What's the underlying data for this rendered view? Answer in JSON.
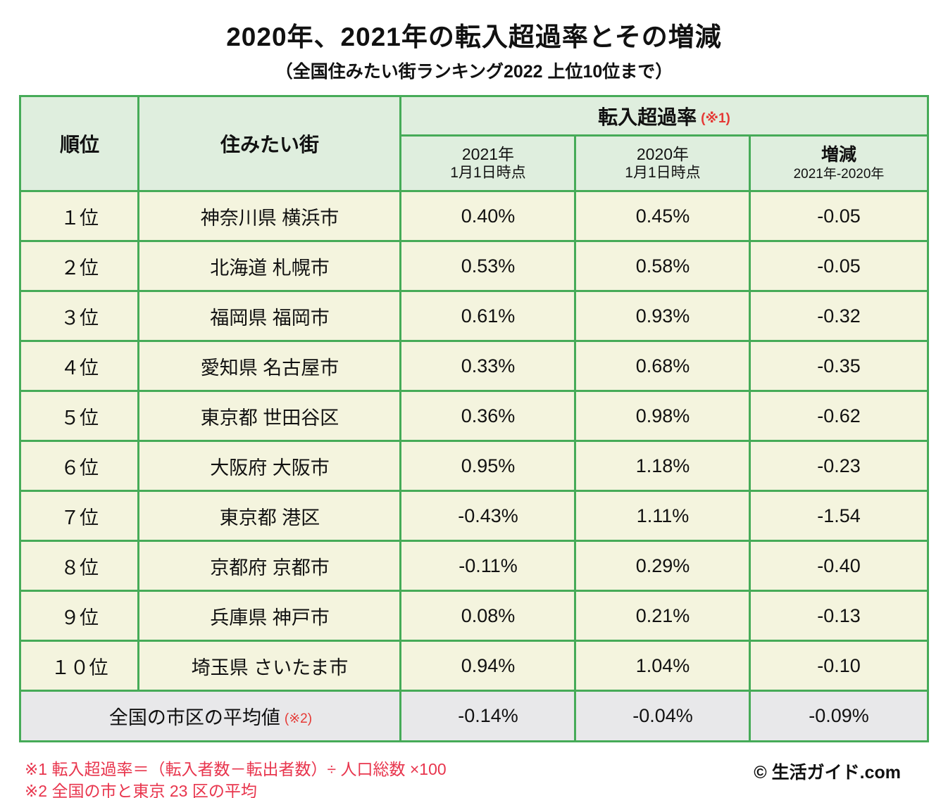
{
  "title": "2020年、2021年の転入超過率とその増減",
  "subtitle": "（全国住みたい街ランキング2022 上位10位まで）",
  "header": {
    "rank": "順位",
    "city": "住みたい街",
    "rate_group": "転入超過率",
    "rate_group_note": "(※1)",
    "y2021": {
      "line1": "2021年",
      "line2": "1月1日時点"
    },
    "y2020": {
      "line1": "2020年",
      "line2": "1月1日時点"
    },
    "diff": {
      "line1": "増減",
      "line2": "2021年-2020年"
    }
  },
  "chart_data": {
    "type": "table",
    "title": "2020年、2021年の転入超過率とその増減",
    "subtitle": "（全国住みたい街ランキング2022 上位10位まで）",
    "columns": [
      "順位",
      "住みたい街",
      "転入超過率 2021年1月1日時点",
      "転入超過率 2020年1月1日時点",
      "増減 2021年-2020年"
    ],
    "rows": [
      {
        "rank": "１位",
        "city": "神奈川県 横浜市",
        "rate_2021": "0.40%",
        "rate_2020": "0.45%",
        "diff": "-0.05"
      },
      {
        "rank": "２位",
        "city": "北海道 札幌市",
        "rate_2021": "0.53%",
        "rate_2020": "0.58%",
        "diff": "-0.05"
      },
      {
        "rank": "３位",
        "city": "福岡県 福岡市",
        "rate_2021": "0.61%",
        "rate_2020": "0.93%",
        "diff": "-0.32"
      },
      {
        "rank": "４位",
        "city": "愛知県 名古屋市",
        "rate_2021": "0.33%",
        "rate_2020": "0.68%",
        "diff": "-0.35"
      },
      {
        "rank": "５位",
        "city": "東京都 世田谷区",
        "rate_2021": "0.36%",
        "rate_2020": "0.98%",
        "diff": "-0.62"
      },
      {
        "rank": "６位",
        "city": "大阪府 大阪市",
        "rate_2021": "0.95%",
        "rate_2020": "1.18%",
        "diff": "-0.23"
      },
      {
        "rank": "７位",
        "city": "東京都 港区",
        "rate_2021": "-0.43%",
        "rate_2020": "1.11%",
        "diff": "-1.54"
      },
      {
        "rank": "８位",
        "city": "京都府 京都市",
        "rate_2021": "-0.11%",
        "rate_2020": "0.29%",
        "diff": "-0.40"
      },
      {
        "rank": "９位",
        "city": "兵庫県 神戸市",
        "rate_2021": "0.08%",
        "rate_2020": "0.21%",
        "diff": "-0.13"
      },
      {
        "rank": "１０位",
        "city": "埼玉県 さいたま市",
        "rate_2021": "0.94%",
        "rate_2020": "1.04%",
        "diff": "-0.10"
      }
    ],
    "average_row": {
      "label": "全国の市区の平均値",
      "note": "(※2)",
      "rate_2021": "-0.14%",
      "rate_2020": "-0.04%",
      "diff": "-0.09%"
    }
  },
  "footnotes": [
    "※1 転入超過率＝（転入者数－転出者数）÷ 人口総数 ×100",
    "※2 全国の市と東京 23 区の平均"
  ],
  "copyright": "© 生活ガイド.com",
  "colors": {
    "border_green": "#46ab58",
    "header_bg": "#dfeede",
    "row_bg": "#f4f4de",
    "average_bg": "#e8e8ea",
    "accent_red": "#e8354d",
    "note_red": "#e53935"
  }
}
